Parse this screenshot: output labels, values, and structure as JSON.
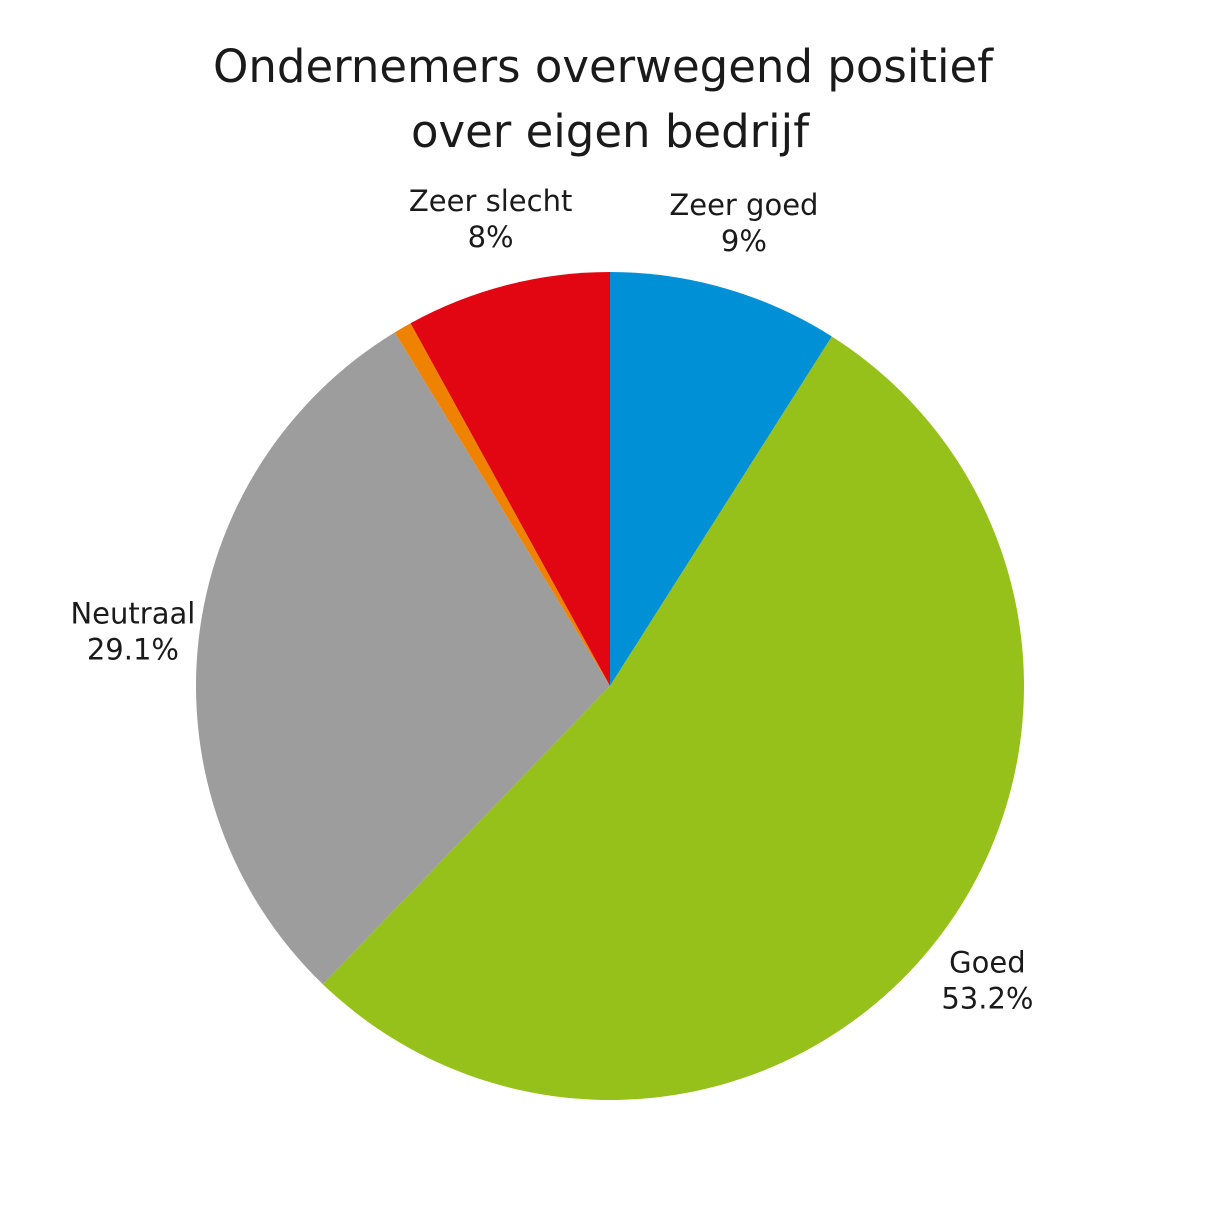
{
  "chart_data": {
    "type": "pie",
    "title": [
      "Ondernemers overwegend positief",
      "over eigen bedrijf"
    ],
    "categories": [
      "Zeer goed",
      "Goed",
      "Neutraal",
      null,
      "Zeer slecht"
    ],
    "values": [
      9,
      53.2,
      29.1,
      0.7,
      8
    ],
    "value_labels": [
      "9%",
      "53.2%",
      "29.1%",
      null,
      "8%"
    ],
    "colors": [
      "#0090d6",
      "#95c11a",
      "#9d9d9d",
      "#ef8200",
      "#e20613"
    ]
  }
}
